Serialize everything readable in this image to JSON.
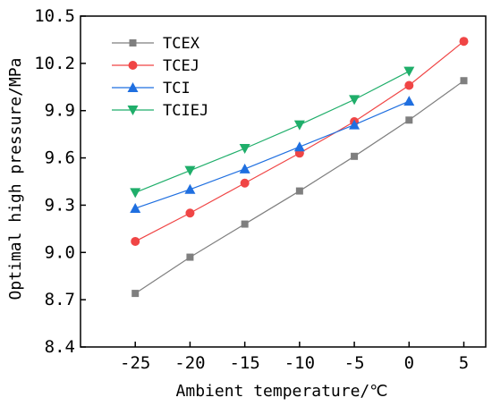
{
  "chart_data": {
    "type": "line",
    "title": "",
    "xlabel": "Ambient temperature/℃",
    "ylabel": "Optimal high pressure/MPa",
    "xlim": [
      -30,
      7
    ],
    "ylim": [
      8.4,
      10.5
    ],
    "x_ticks": [
      -25,
      -20,
      -15,
      -10,
      -5,
      0,
      5
    ],
    "x_tick_labels": [
      "-25",
      "-20",
      "-15",
      "-10",
      "-5",
      "0",
      "5"
    ],
    "y_ticks": [
      8.4,
      8.7,
      9.0,
      9.3,
      9.6,
      9.9,
      10.2,
      10.5
    ],
    "y_tick_labels": [
      "8.4",
      "8.7",
      "9.0",
      "9.3",
      "9.6",
      "9.9",
      "10.2",
      "10.5"
    ],
    "grid": false,
    "legend_position": "top-left",
    "series": [
      {
        "name": "TCEX",
        "color": "#7f7f7f",
        "marker": "square",
        "x": [
          -25,
          -20,
          -15,
          -10,
          -5,
          0,
          5
        ],
        "values": [
          8.74,
          8.97,
          9.18,
          9.39,
          9.61,
          9.84,
          10.09
        ]
      },
      {
        "name": "TCEJ",
        "color": "#f04545",
        "marker": "circle",
        "x": [
          -25,
          -20,
          -15,
          -10,
          -5,
          0,
          5
        ],
        "values": [
          9.07,
          9.25,
          9.44,
          9.63,
          9.83,
          10.06,
          10.34
        ]
      },
      {
        "name": "TCI",
        "color": "#1f6fe0",
        "marker": "triangle-up",
        "x": [
          -25,
          -20,
          -15,
          -10,
          -5,
          0
        ],
        "values": [
          9.28,
          9.4,
          9.53,
          9.67,
          9.81,
          9.96
        ]
      },
      {
        "name": "TCIEJ",
        "color": "#1fae6a",
        "marker": "triangle-down",
        "x": [
          -25,
          -20,
          -15,
          -10,
          -5,
          0
        ],
        "values": [
          9.38,
          9.52,
          9.66,
          9.81,
          9.97,
          10.15
        ]
      }
    ]
  }
}
